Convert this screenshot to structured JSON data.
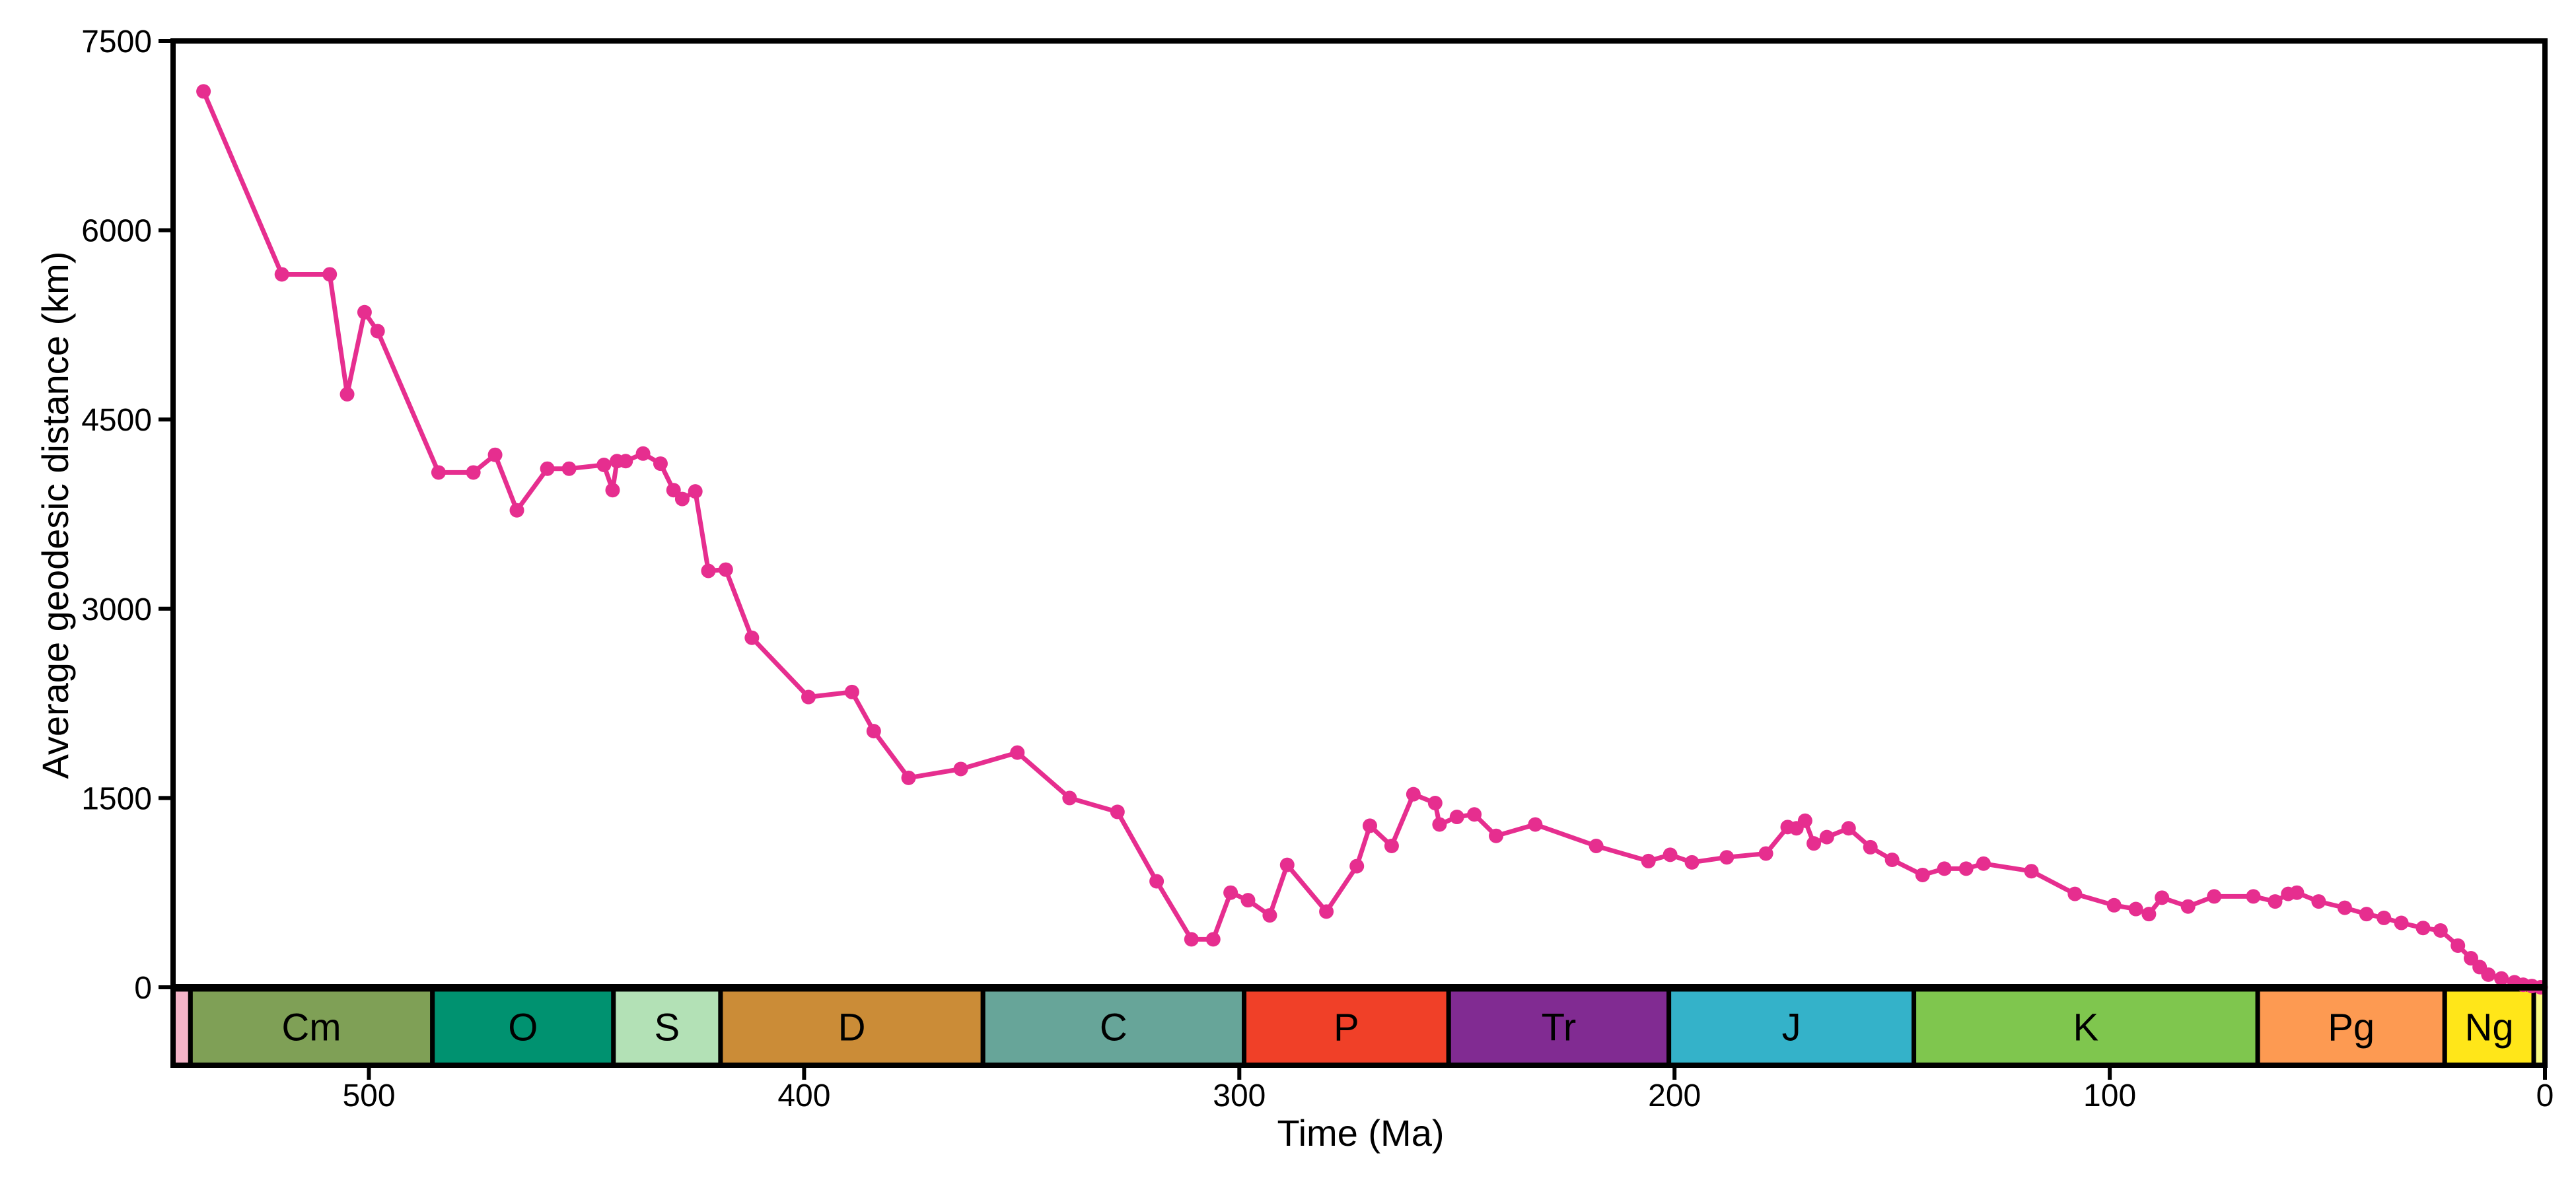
{
  "chart_data": {
    "type": "line",
    "xlabel": "Time (Ma)",
    "ylabel": "Average geodesic distance (km)",
    "xlim": [
      545,
      0
    ],
    "ylim": [
      0,
      7500
    ],
    "x_reversed": true,
    "grid": false,
    "legend": "none",
    "line_color": "#E62E8F",
    "x_ticks": [
      {
        "value": 500,
        "label": "500"
      },
      {
        "value": 400,
        "label": "400"
      },
      {
        "value": 300,
        "label": "300"
      },
      {
        "value": 200,
        "label": "200"
      },
      {
        "value": 100,
        "label": "100"
      },
      {
        "value": 0,
        "label": "0"
      }
    ],
    "y_ticks": [
      {
        "value": 0,
        "label": "0"
      },
      {
        "value": 1500,
        "label": "1500"
      },
      {
        "value": 3000,
        "label": "3000"
      },
      {
        "value": 4500,
        "label": "4500"
      },
      {
        "value": 6000,
        "label": "6000"
      },
      {
        "value": 7500,
        "label": "7500"
      }
    ],
    "series": [
      {
        "x": [
          538,
          520,
          509,
          505,
          501,
          498,
          484,
          476,
          471,
          466,
          459,
          454,
          446,
          444,
          443,
          441,
          437,
          433,
          430,
          428,
          425,
          422,
          418,
          412,
          399,
          389,
          384,
          376,
          364,
          351,
          339,
          328,
          319,
          311,
          306,
          302,
          298,
          293,
          289,
          280,
          273,
          270,
          265,
          260,
          255,
          254,
          250,
          246,
          241,
          232,
          218,
          206,
          201,
          196,
          188,
          179,
          174,
          172,
          170,
          168,
          165,
          160,
          155,
          150,
          143,
          138,
          133,
          129,
          118,
          108,
          99,
          94,
          91,
          88,
          82,
          76,
          67,
          62,
          59,
          57,
          52,
          46,
          41,
          37,
          33,
          28,
          24,
          20,
          17,
          15,
          13,
          10,
          7,
          5,
          3,
          1
        ],
        "y": [
          7100,
          5650,
          5650,
          4700,
          5350,
          5200,
          4080,
          4080,
          4220,
          3780,
          4110,
          4110,
          4140,
          3940,
          4170,
          4170,
          4230,
          4150,
          3940,
          3870,
          3930,
          3300,
          3310,
          2770,
          2300,
          2340,
          2030,
          1660,
          1730,
          1860,
          1500,
          1390,
          840,
          380,
          380,
          750,
          690,
          570,
          970,
          600,
          960,
          1280,
          1120,
          1530,
          1460,
          1290,
          1350,
          1370,
          1200,
          1290,
          1120,
          1000,
          1050,
          990,
          1030,
          1060,
          1270,
          1260,
          1320,
          1140,
          1190,
          1260,
          1110,
          1010,
          890,
          940,
          940,
          980,
          920,
          740,
          650,
          620,
          580,
          710,
          640,
          720,
          720,
          680,
          740,
          750,
          680,
          630,
          580,
          550,
          510,
          470,
          450,
          330,
          230,
          160,
          100,
          70,
          40,
          20,
          10,
          0
        ]
      }
    ],
    "timescale": [
      {
        "label": "",
        "start": 545,
        "end": 541,
        "color": "#F5B4C8"
      },
      {
        "label": "Cm",
        "start": 541,
        "end": 485.4,
        "color": "#7FA056"
      },
      {
        "label": "O",
        "start": 485.4,
        "end": 443.8,
        "color": "#009270"
      },
      {
        "label": "S",
        "start": 443.8,
        "end": 419.2,
        "color": "#B3E1B6"
      },
      {
        "label": "D",
        "start": 419.2,
        "end": 358.9,
        "color": "#CB8C37"
      },
      {
        "label": "C",
        "start": 358.9,
        "end": 298.9,
        "color": "#67A599"
      },
      {
        "label": "P",
        "start": 298.9,
        "end": 251.9,
        "color": "#F04028"
      },
      {
        "label": "Tr",
        "start": 251.9,
        "end": 201.3,
        "color": "#812B92"
      },
      {
        "label": "J",
        "start": 201.3,
        "end": 145,
        "color": "#34B2C9"
      },
      {
        "label": "K",
        "start": 145,
        "end": 66,
        "color": "#7FC64E"
      },
      {
        "label": "Pg",
        "start": 66,
        "end": 23.03,
        "color": "#FD9A52"
      },
      {
        "label": "Ng",
        "start": 23.03,
        "end": 2.58,
        "color": "#FFE619"
      },
      {
        "label": "",
        "start": 2.58,
        "end": 0,
        "color": "#F9F97F"
      }
    ]
  }
}
